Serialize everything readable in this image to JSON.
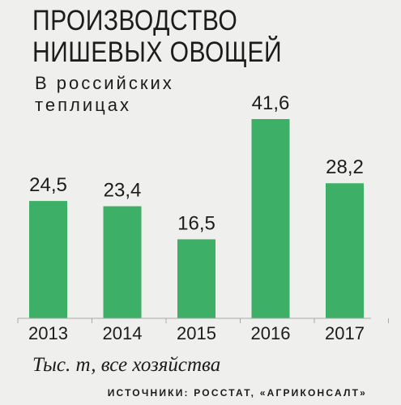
{
  "title_lines": [
    "ПРОИЗВОДСТВО",
    "НИШЕВЫХ ОВОЩЕЙ"
  ],
  "subtitle_lines": [
    "В российских",
    "теплицах"
  ],
  "units_note": "Тыс. т, все хозяйства",
  "source": "ИСТОЧНИКИ: РОССТАТ, «АГРИКОНСАЛТ»",
  "colors": {
    "bar": "#3daf67",
    "axis": "#a8a8a8",
    "text": "#1c1c1c",
    "background": "#efefee"
  },
  "chart_data": {
    "type": "bar",
    "categories": [
      "2013",
      "2014",
      "2015",
      "2016",
      "2017"
    ],
    "values": [
      24.5,
      23.4,
      16.5,
      41.6,
      28.2
    ],
    "value_labels": [
      "24,5",
      "23,4",
      "16,5",
      "41,6",
      "28,2"
    ],
    "ylim": [
      0,
      41.6
    ],
    "grid": false
  }
}
